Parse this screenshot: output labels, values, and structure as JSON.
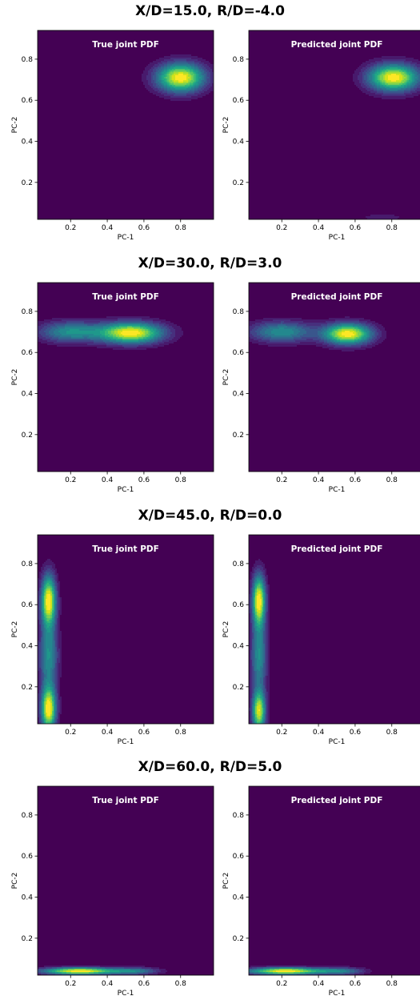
{
  "colors": {
    "background": "#440154",
    "palette": [
      "#481a6c",
      "#472f7d",
      "#414487",
      "#39568c",
      "#31688e",
      "#2a788e",
      "#23888e",
      "#1f988b",
      "#22a884",
      "#35b779",
      "#54c568",
      "#7ad151",
      "#a5db36",
      "#d2e21b",
      "#fde725"
    ]
  },
  "chart_data": [
    {
      "type": "heatmap",
      "name": "contour",
      "title": "X/D=15.0, R/D=-4.0",
      "subtitle": "True joint PDF",
      "xlabel": "PC-1",
      "ylabel": "PC-2",
      "xlim": [
        0.02,
        0.98
      ],
      "ylim": [
        0.02,
        0.94
      ],
      "xticks": [
        "0.2",
        "0.4",
        "0.6",
        "0.8"
      ],
      "yticks": [
        "0.2",
        "0.4",
        "0.6",
        "0.8"
      ],
      "peaks": [
        {
          "x": 0.8,
          "y": 0.71,
          "density": 1.0,
          "sx": 0.09,
          "sy": 0.048
        }
      ]
    },
    {
      "type": "heatmap",
      "name": "contour",
      "title": "X/D=15.0, R/D=-4.0",
      "subtitle": "Predicted joint PDF",
      "xlabel": "PC-1",
      "ylabel": "PC-2",
      "xlim": [
        0.02,
        0.98
      ],
      "ylim": [
        0.02,
        0.94
      ],
      "xticks": [
        "0.2",
        "0.4",
        "0.6",
        "0.8"
      ],
      "yticks": [
        "0.2",
        "0.4",
        "0.6",
        "0.8"
      ],
      "peaks": [
        {
          "x": 0.81,
          "y": 0.71,
          "density": 1.0,
          "sx": 0.095,
          "sy": 0.045
        },
        {
          "x": 0.75,
          "y": 0.03,
          "density": 0.12,
          "sx": 0.08,
          "sy": 0.012
        }
      ]
    },
    {
      "type": "heatmap",
      "name": "contour",
      "title": "X/D=30.0, R/D=3.0",
      "subtitle": "True joint PDF",
      "xlabel": "PC-1",
      "ylabel": "PC-2",
      "xlim": [
        0.02,
        0.98
      ],
      "ylim": [
        0.02,
        0.94
      ],
      "xticks": [
        "0.2",
        "0.4",
        "0.6",
        "0.8"
      ],
      "yticks": [
        "0.2",
        "0.4",
        "0.6",
        "0.8"
      ],
      "peaks": [
        {
          "x": 0.53,
          "y": 0.695,
          "density": 1.0,
          "sx": 0.12,
          "sy": 0.035
        },
        {
          "x": 0.2,
          "y": 0.7,
          "density": 0.5,
          "sx": 0.12,
          "sy": 0.035
        }
      ]
    },
    {
      "type": "heatmap",
      "name": "contour",
      "title": "X/D=30.0, R/D=3.0",
      "subtitle": "Predicted joint PDF",
      "xlabel": "PC-1",
      "ylabel": "PC-2",
      "xlim": [
        0.02,
        0.98
      ],
      "ylim": [
        0.02,
        0.94
      ],
      "xticks": [
        "0.2",
        "0.4",
        "0.6",
        "0.8"
      ],
      "yticks": [
        "0.2",
        "0.4",
        "0.6",
        "0.8"
      ],
      "peaks": [
        {
          "x": 0.56,
          "y": 0.69,
          "density": 1.0,
          "sx": 0.09,
          "sy": 0.035
        },
        {
          "x": 0.2,
          "y": 0.7,
          "density": 0.5,
          "sx": 0.12,
          "sy": 0.035
        }
      ]
    },
    {
      "type": "heatmap",
      "name": "contour",
      "title": "X/D=45.0, R/D=0.0",
      "subtitle": "True joint PDF",
      "xlabel": "PC-1",
      "ylabel": "PC-2",
      "xlim": [
        0.02,
        0.98
      ],
      "ylim": [
        0.02,
        0.94
      ],
      "xticks": [
        "0.2",
        "0.4",
        "0.6",
        "0.8"
      ],
      "yticks": [
        "0.2",
        "0.4",
        "0.6",
        "0.8"
      ],
      "peaks": [
        {
          "x": 0.08,
          "y": 0.62,
          "density": 1.0,
          "sx": 0.028,
          "sy": 0.085
        },
        {
          "x": 0.08,
          "y": 0.09,
          "density": 1.0,
          "sx": 0.028,
          "sy": 0.075
        },
        {
          "x": 0.08,
          "y": 0.35,
          "density": 0.5,
          "sx": 0.035,
          "sy": 0.12
        }
      ]
    },
    {
      "type": "heatmap",
      "name": "contour",
      "title": "X/D=45.0, R/D=0.0",
      "subtitle": "Predicted joint PDF",
      "xlabel": "PC-1",
      "ylabel": "PC-2",
      "xlim": [
        0.02,
        0.98
      ],
      "ylim": [
        0.02,
        0.94
      ],
      "xticks": [
        "0.2",
        "0.4",
        "0.6",
        "0.8"
      ],
      "yticks": [
        "0.2",
        "0.4",
        "0.6",
        "0.8"
      ],
      "peaks": [
        {
          "x": 0.075,
          "y": 0.62,
          "density": 1.0,
          "sx": 0.025,
          "sy": 0.085
        },
        {
          "x": 0.075,
          "y": 0.08,
          "density": 0.9,
          "sx": 0.025,
          "sy": 0.07
        },
        {
          "x": 0.075,
          "y": 0.35,
          "density": 0.5,
          "sx": 0.03,
          "sy": 0.12
        }
      ]
    },
    {
      "type": "heatmap",
      "name": "contour",
      "title": "X/D=60.0, R/D=5.0",
      "subtitle": "True joint PDF",
      "xlabel": "PC-1",
      "ylabel": "PC-2",
      "xlim": [
        0.02,
        0.98
      ],
      "ylim": [
        0.02,
        0.94
      ],
      "xticks": [
        "0.2",
        "0.4",
        "0.6",
        "0.8"
      ],
      "yticks": [
        "0.2",
        "0.4",
        "0.6",
        "0.8"
      ],
      "peaks": [
        {
          "x": 0.25,
          "y": 0.04,
          "density": 1.0,
          "sx": 0.14,
          "sy": 0.012
        },
        {
          "x": 0.55,
          "y": 0.04,
          "density": 0.4,
          "sx": 0.09,
          "sy": 0.012
        }
      ]
    },
    {
      "type": "heatmap",
      "name": "contour",
      "title": "X/D=60.0, R/D=5.0",
      "subtitle": "Predicted joint PDF",
      "xlabel": "PC-1",
      "ylabel": "PC-2",
      "xlim": [
        0.02,
        0.98
      ],
      "ylim": [
        0.02,
        0.94
      ],
      "xticks": [
        "0.2",
        "0.4",
        "0.6",
        "0.8"
      ],
      "yticks": [
        "0.2",
        "0.4",
        "0.6",
        "0.8"
      ],
      "peaks": [
        {
          "x": 0.22,
          "y": 0.04,
          "density": 1.0,
          "sx": 0.14,
          "sy": 0.012
        },
        {
          "x": 0.52,
          "y": 0.04,
          "density": 0.4,
          "sx": 0.09,
          "sy": 0.012
        }
      ]
    }
  ]
}
